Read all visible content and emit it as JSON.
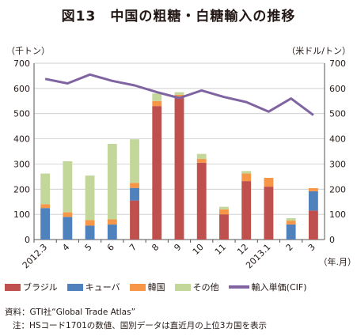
{
  "title": "図13　中国の粗糖・白糖輸入の推移",
  "left_unit": "（千トン）",
  "right_unit": "（米ドル/トン）",
  "x_unit": "（年.月）",
  "source": "資料：GTI社“Global Trade Atlas”",
  "note": "注：HSコード1701の数値、国別データは直近月の上位3カ国を表示",
  "colors": {
    "brazil": "#c0504d",
    "cuba": "#4f81bd",
    "korea": "#f79646",
    "other": "#c4d79b",
    "price": "#8064a2"
  },
  "chart_data": {
    "type": "bar",
    "categories": [
      "2012.3",
      "4",
      "5",
      "6",
      "7",
      "8",
      "9",
      "10",
      "11",
      "12",
      "2013.1",
      "2",
      "3"
    ],
    "y_left_ticks": [
      "0",
      "100",
      "200",
      "300",
      "400",
      "500",
      "600",
      "700"
    ],
    "y_right_ticks": [
      "0",
      "100",
      "200",
      "300",
      "400",
      "500",
      "600",
      "700"
    ],
    "ylim": [
      0,
      700
    ],
    "y2lim": [
      0,
      700
    ],
    "grid": true,
    "legend_position": "bottom",
    "series": [
      {
        "name": "ブラジル",
        "key": "brazil",
        "values": [
          0,
          0,
          0,
          0,
          155,
          530,
          565,
          305,
          100,
          232,
          210,
          0,
          115
        ]
      },
      {
        "name": "キューバ",
        "key": "cuba",
        "values": [
          125,
          90,
          55,
          60,
          50,
          0,
          0,
          0,
          0,
          0,
          0,
          60,
          77
        ]
      },
      {
        "name": "韓国",
        "key": "korea",
        "values": [
          15,
          18,
          22,
          20,
          20,
          20,
          10,
          15,
          20,
          30,
          35,
          15,
          12
        ]
      },
      {
        "name": "その他",
        "key": "other",
        "values": [
          122,
          203,
          177,
          300,
          173,
          30,
          10,
          20,
          10,
          10,
          0,
          10,
          0
        ]
      }
    ],
    "line_series": {
      "name": "輸入単価(CIF)",
      "key": "price",
      "axis": "right",
      "values": [
        638,
        620,
        655,
        630,
        612,
        585,
        562,
        592,
        566,
        546,
        508,
        560,
        494
      ]
    }
  }
}
